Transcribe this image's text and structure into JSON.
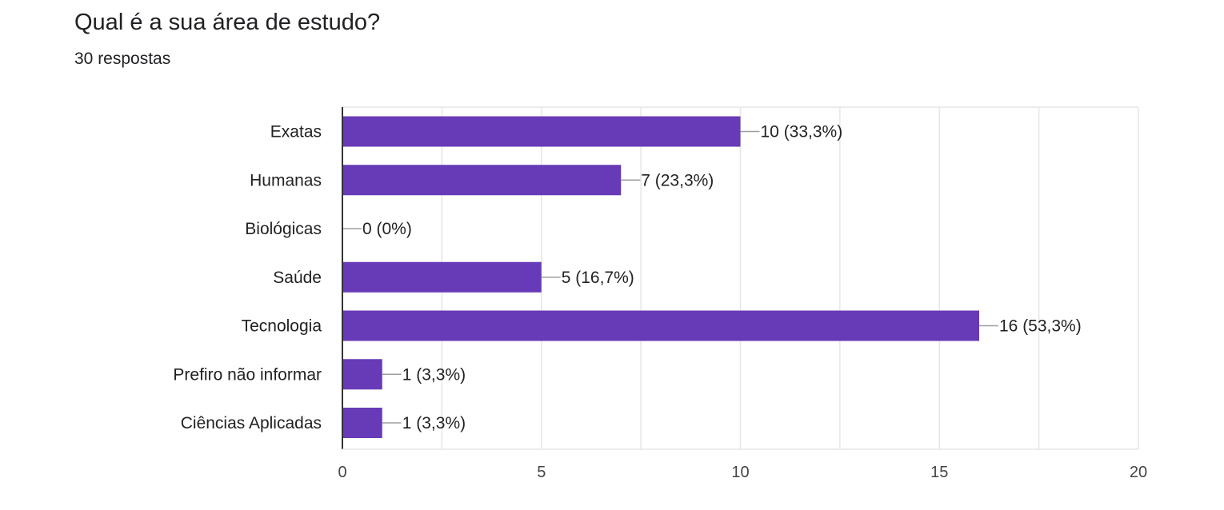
{
  "header": {
    "question": "Qual é a sua área de estudo?",
    "responses": "30 respostas"
  },
  "colors": {
    "bar": "#673ab7",
    "grid": "#e6e6e6",
    "axis": "#333333",
    "leader": "#9e9e9e"
  },
  "chart_data": {
    "type": "bar",
    "orientation": "horizontal",
    "categories": [
      "Exatas",
      "Humanas",
      "Biológicas",
      "Saúde",
      "Tecnologia",
      "Prefiro não informar",
      "Ciências Aplicadas"
    ],
    "values": [
      10,
      7,
      0,
      5,
      16,
      1,
      1
    ],
    "data_labels": [
      "10 (33,3%)",
      "7 (23,3%)",
      "0 (0%)",
      "5 (16,7%)",
      "16 (53,3%)",
      "1 (3,3%)",
      "1 (3,3%)"
    ],
    "x_ticks": [
      0,
      5,
      10,
      15,
      20
    ],
    "xlim": [
      0,
      20
    ],
    "grid": true,
    "legend": "none"
  }
}
